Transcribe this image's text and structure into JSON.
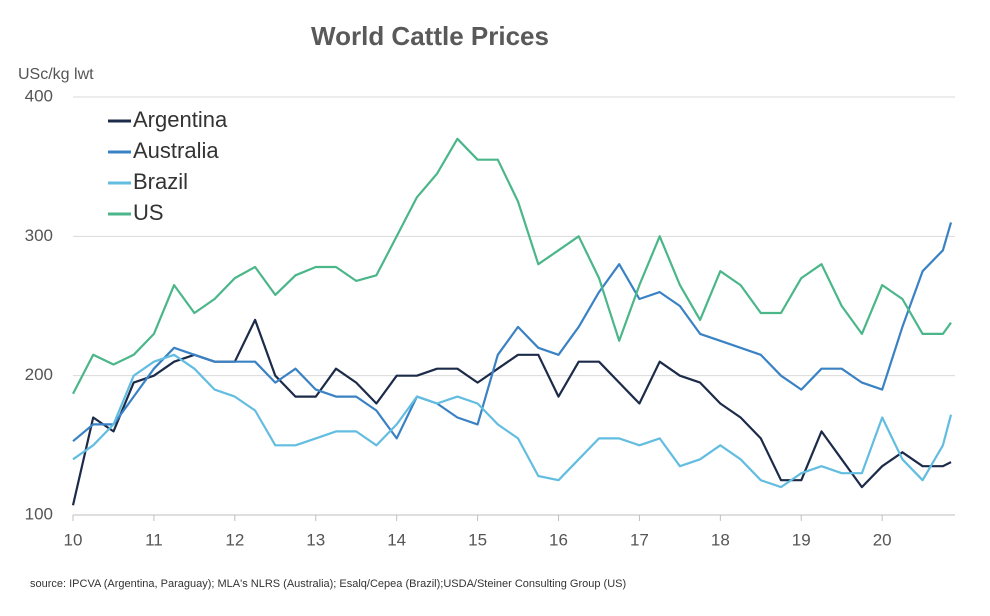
{
  "chart_data": {
    "type": "line",
    "title": "World Cattle Prices",
    "y_label": "USc/kg lwt",
    "source": "source: IPCVA (Argentina, Paraguay); MLA's NLRS (Australia); Esalq/Cepea (Brazil);USDA/Steiner Consulting Group (US)",
    "x": [
      10,
      10.25,
      10.5,
      10.75,
      11,
      11.25,
      11.5,
      11.75,
      12,
      12.25,
      12.5,
      12.75,
      13,
      13.25,
      13.5,
      13.75,
      14,
      14.25,
      14.5,
      14.75,
      15,
      15.25,
      15.5,
      15.75,
      16,
      16.25,
      16.5,
      16.75,
      17,
      17.25,
      17.5,
      17.75,
      18,
      18.25,
      18.5,
      18.75,
      19,
      19.25,
      19.5,
      19.75,
      20,
      20.25,
      20.5,
      20.75,
      20.85
    ],
    "series": [
      {
        "name": "Argentina",
        "color": "#1c2b4a",
        "values": [
          107,
          170,
          160,
          195,
          200,
          210,
          215,
          210,
          210,
          240,
          200,
          185,
          185,
          205,
          195,
          180,
          200,
          200,
          205,
          205,
          195,
          205,
          215,
          215,
          185,
          210,
          210,
          195,
          180,
          210,
          200,
          195,
          180,
          170,
          155,
          125,
          125,
          160,
          140,
          120,
          135,
          145,
          135,
          135,
          138
        ]
      },
      {
        "name": "Australia",
        "color": "#3a82c4",
        "values": [
          153,
          165,
          165,
          185,
          205,
          220,
          215,
          210,
          210,
          210,
          195,
          205,
          190,
          185,
          185,
          175,
          155,
          185,
          180,
          170,
          165,
          215,
          235,
          220,
          215,
          235,
          260,
          280,
          255,
          260,
          250,
          230,
          225,
          220,
          215,
          200,
          190,
          205,
          205,
          195,
          190,
          235,
          275,
          290,
          310
        ]
      },
      {
        "name": "Brazil",
        "color": "#62bde0",
        "values": [
          140,
          150,
          165,
          200,
          210,
          215,
          205,
          190,
          185,
          175,
          150,
          150,
          155,
          160,
          160,
          150,
          165,
          185,
          180,
          185,
          180,
          165,
          155,
          128,
          125,
          140,
          155,
          155,
          150,
          155,
          135,
          140,
          150,
          140,
          125,
          120,
          130,
          135,
          130,
          130,
          170,
          140,
          125,
          150,
          172
        ]
      },
      {
        "name": "US",
        "color": "#4bb68a",
        "values": [
          187,
          215,
          208,
          215,
          230,
          265,
          245,
          255,
          270,
          278,
          258,
          272,
          278,
          278,
          268,
          272,
          300,
          328,
          345,
          370,
          355,
          355,
          325,
          280,
          290,
          300,
          270,
          225,
          265,
          300,
          265,
          240,
          275,
          265,
          245,
          245,
          270,
          280,
          250,
          230,
          265,
          255,
          230,
          230,
          238
        ]
      }
    ],
    "xlim": [
      10,
      20.9
    ],
    "xticks": [
      10,
      11,
      12,
      13,
      14,
      15,
      16,
      17,
      18,
      19,
      20
    ],
    "ylim": [
      100,
      400
    ],
    "yticks": [
      100,
      200,
      300,
      400
    ],
    "grid": true,
    "legend": "top-left"
  }
}
